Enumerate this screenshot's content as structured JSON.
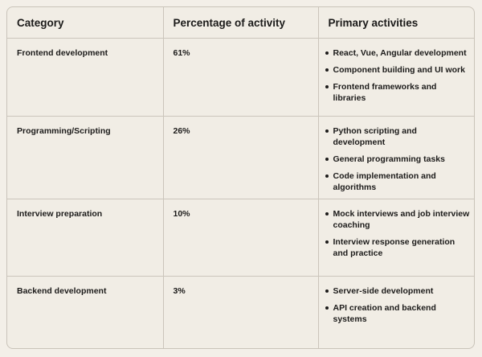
{
  "table": {
    "headers": [
      "Category",
      "Percentage of activity",
      "Primary activities"
    ],
    "rows": [
      {
        "category": "Frontend development",
        "percentage": "61%",
        "activities": [
          "React, Vue, Angular development",
          "Component building and UI work",
          "Frontend frameworks and libraries"
        ]
      },
      {
        "category": "Programming/Scripting",
        "percentage": "26%",
        "activities": [
          "Python scripting and development",
          "General programming tasks",
          "Code implementation and algorithms"
        ]
      },
      {
        "category": "Interview preparation",
        "percentage": "10%",
        "activities": [
          "Mock interviews and job interview coaching",
          "Interview response generation and practice"
        ]
      },
      {
        "category": "Backend development",
        "percentage": "3%",
        "activities": [
          "Server-side development",
          "API creation and backend systems"
        ]
      }
    ]
  }
}
